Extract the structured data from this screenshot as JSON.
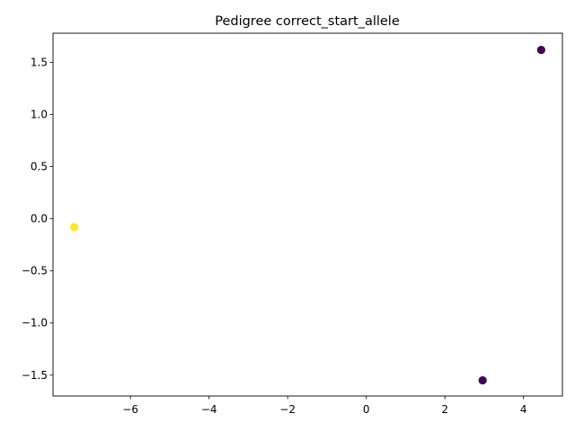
{
  "chart_data": {
    "type": "scatter",
    "title": "Pedigree correct_start_allele",
    "xlabel": "",
    "ylabel": "",
    "xlim": [
      -7.97,
      4.99
    ],
    "ylim": [
      -1.7,
      1.78
    ],
    "xticks": [
      -6,
      -4,
      -2,
      0,
      2,
      4
    ],
    "yticks": [
      -1.5,
      -1.0,
      -0.5,
      0.0,
      0.5,
      1.0,
      1.5
    ],
    "xtick_labels": [
      "−6",
      "−4",
      "−2",
      "0",
      "2",
      "4"
    ],
    "ytick_labels": [
      "−1.5",
      "−1.0",
      "−0.5",
      "0.0",
      "0.5",
      "1.0",
      "1.5"
    ],
    "grid": false,
    "points": [
      {
        "x": 4.45,
        "y": 1.62,
        "color": "#440154"
      },
      {
        "x": -7.43,
        "y": -0.08,
        "color": "#fde725"
      },
      {
        "x": 2.96,
        "y": -1.55,
        "color": "#440154"
      }
    ]
  }
}
